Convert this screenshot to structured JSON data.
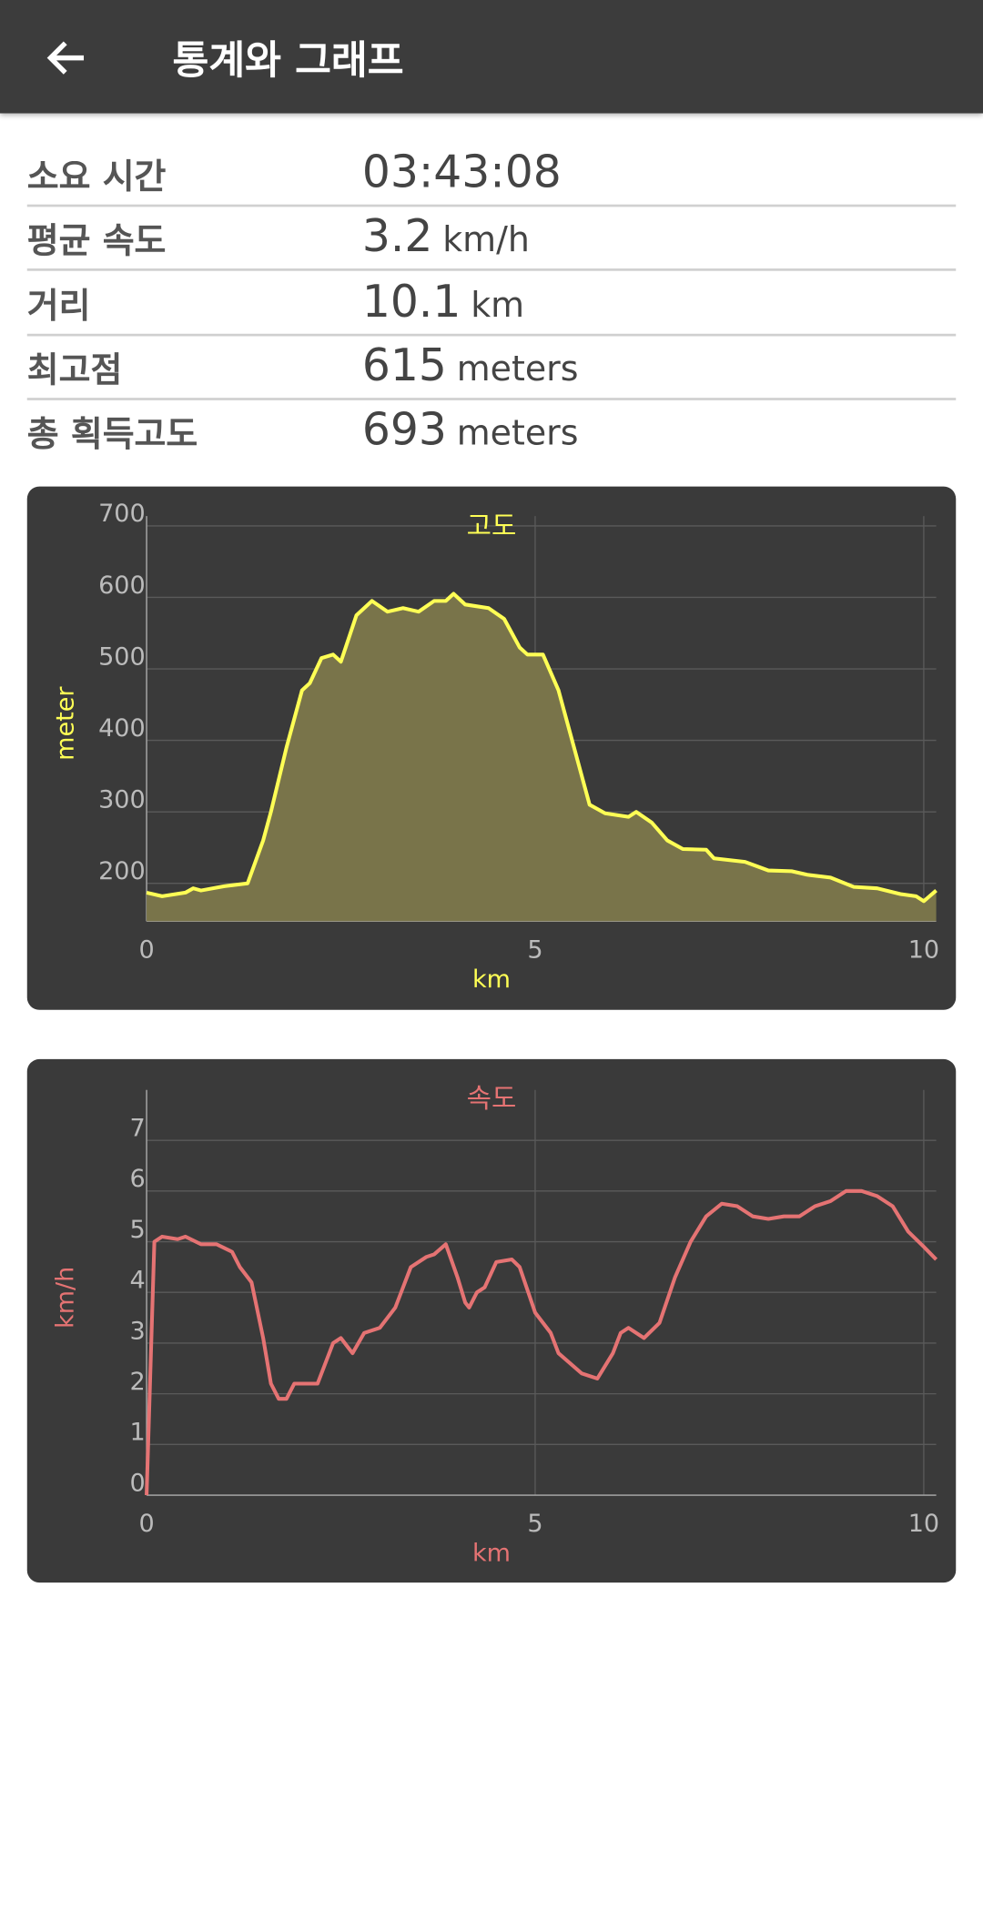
{
  "header": {
    "title": "통계와 그래프"
  },
  "stats": [
    {
      "label": "소요 시간",
      "value": "03:43:08"
    },
    {
      "label": "평균 속도",
      "value": "3.2",
      "unit": "km/h"
    },
    {
      "label": "거리",
      "value": "10.1",
      "unit": "km"
    },
    {
      "label": "최고점",
      "value": "615",
      "unit": "meters"
    },
    {
      "label": "총 획득고도",
      "value": "693",
      "unit": "meters"
    }
  ],
  "chart_data": [
    {
      "type": "area",
      "title": "고도",
      "x_label": "km",
      "y_label": "meter",
      "color": "#ffff55",
      "fill_color": "#79744a",
      "x": [
        0,
        0.2,
        0.5,
        0.6,
        0.7,
        1.0,
        1.3,
        1.5,
        1.6,
        1.8,
        2.0,
        2.1,
        2.25,
        2.4,
        2.5,
        2.7,
        2.9,
        3.1,
        3.3,
        3.5,
        3.7,
        3.85,
        3.95,
        4.1,
        4.4,
        4.6,
        4.8,
        4.9,
        5.1,
        5.3,
        5.5,
        5.7,
        5.9,
        6.2,
        6.3,
        6.5,
        6.7,
        6.9,
        7.2,
        7.3,
        7.7,
        8.0,
        8.3,
        8.5,
        8.8,
        9.1,
        9.4,
        9.7,
        9.9,
        10.0,
        10.16
      ],
      "values": [
        187,
        182,
        187,
        193,
        190,
        196,
        200,
        260,
        300,
        390,
        470,
        480,
        515,
        520,
        510,
        575,
        595,
        580,
        585,
        580,
        595,
        595,
        605,
        590,
        585,
        570,
        530,
        520,
        520,
        470,
        390,
        310,
        298,
        293,
        300,
        285,
        260,
        248,
        247,
        235,
        230,
        218,
        217,
        212,
        208,
        195,
        193,
        185,
        182,
        175,
        190
      ],
      "xlim": [
        0,
        10.16
      ],
      "xticks": [
        0,
        5,
        10
      ],
      "ylim": [
        147,
        700
      ],
      "yticks": [
        200,
        300,
        400,
        500,
        600,
        700
      ],
      "grid": true
    },
    {
      "type": "line",
      "title": "속도",
      "x_label": "km",
      "y_label": "km/h",
      "color": "#e57373",
      "x": [
        0,
        0.1,
        0.2,
        0.4,
        0.5,
        0.7,
        0.9,
        1.1,
        1.2,
        1.35,
        1.5,
        1.6,
        1.7,
        1.8,
        1.9,
        2.1,
        2.2,
        2.4,
        2.5,
        2.65,
        2.8,
        3.0,
        3.2,
        3.4,
        3.6,
        3.7,
        3.85,
        4.0,
        4.1,
        4.15,
        4.25,
        4.35,
        4.5,
        4.7,
        4.8,
        5.0,
        5.2,
        5.3,
        5.6,
        5.8,
        6.0,
        6.1,
        6.2,
        6.4,
        6.6,
        6.8,
        7.0,
        7.2,
        7.4,
        7.6,
        7.8,
        8.0,
        8.2,
        8.4,
        8.6,
        8.8,
        9.0,
        9.2,
        9.4,
        9.6,
        9.8,
        10.0,
        10.16
      ],
      "values": [
        0,
        5.0,
        5.1,
        5.05,
        5.1,
        4.95,
        4.95,
        4.8,
        4.5,
        4.2,
        3.1,
        2.2,
        1.9,
        1.9,
        2.2,
        2.2,
        2.2,
        3.0,
        3.1,
        2.8,
        3.2,
        3.3,
        3.7,
        4.5,
        4.7,
        4.75,
        4.95,
        4.3,
        3.8,
        3.7,
        4.0,
        4.1,
        4.6,
        4.65,
        4.5,
        3.6,
        3.2,
        2.8,
        2.4,
        2.3,
        2.8,
        3.2,
        3.3,
        3.1,
        3.4,
        4.3,
        5.0,
        5.5,
        5.75,
        5.7,
        5.5,
        5.45,
        5.5,
        5.5,
        5.7,
        5.8,
        6.0,
        6.0,
        5.9,
        5.7,
        5.2,
        4.9,
        4.65
      ],
      "xlim": [
        0,
        10.16
      ],
      "xticks": [
        0,
        5,
        10
      ],
      "ylim": [
        0,
        7.8
      ],
      "yticks": [
        0,
        1,
        2,
        3,
        4,
        5,
        6,
        7
      ],
      "grid": true
    }
  ]
}
